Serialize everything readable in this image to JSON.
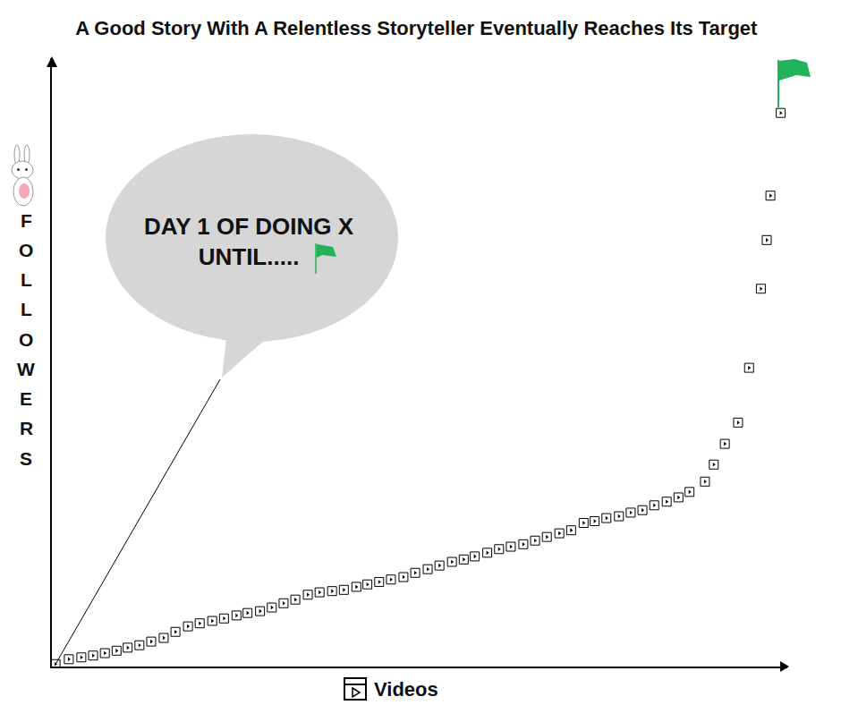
{
  "chart_data": {
    "type": "scatter",
    "title": "A Good Story With A Relentless Storyteller Eventually Reaches Its Target",
    "x_label": "Videos",
    "y_label": "FOLLOWERS",
    "x": [
      0.5,
      2.3,
      4.0,
      5.6,
      7.2,
      8.8,
      10.3,
      11.9,
      13.5,
      15.2,
      16.8,
      18.5,
      20.1,
      21.8,
      23.4,
      25.1,
      26.6,
      28.3,
      29.9,
      31.5,
      33.1,
      34.8,
      36.4,
      38.1,
      39.7,
      41.4,
      42.9,
      44.5,
      46.1,
      47.8,
      49.4,
      51.1,
      52.7,
      54.4,
      56.0,
      57.5,
      59.2,
      60.8,
      62.4,
      64.1,
      65.7,
      67.3,
      69.0,
      70.6,
      72.3,
      73.8,
      75.4,
      77.1,
      78.7,
      80.3,
      81.9,
      83.6,
      85.2,
      86.7,
      88.8,
      90.0,
      91.5,
      93.3,
      94.8,
      96.4,
      97.2,
      97.7,
      99.1
    ],
    "values": [
      0.4,
      1.2,
      1.5,
      1.8,
      2.2,
      2.6,
      3.1,
      3.5,
      4.1,
      4.7,
      5.7,
      6.6,
      7.1,
      7.5,
      7.9,
      8.4,
      8.8,
      9.1,
      9.7,
      10.4,
      11.0,
      11.8,
      12.2,
      12.4,
      12.6,
      13.1,
      13.5,
      13.9,
      14.3,
      14.7,
      15.4,
      16.0,
      16.6,
      17.2,
      17.6,
      18.1,
      18.7,
      19.3,
      19.7,
      20.1,
      20.7,
      21.3,
      21.9,
      22.4,
      23.6,
      23.9,
      24.4,
      24.7,
      25.3,
      25.7,
      26.5,
      27.1,
      27.8,
      28.7,
      30.4,
      33.2,
      36.6,
      40.1,
      49.1,
      62.1,
      70.1,
      77.4,
      91.0
    ],
    "xlim": [
      0,
      100
    ],
    "ylim": [
      0,
      100
    ],
    "tick_labels": false,
    "grid": false,
    "color": "#000000",
    "marker": "video",
    "annotations": [
      {
        "text": "DAY 1 OF DOING X\nUNTIL....."
      }
    ]
  }
}
